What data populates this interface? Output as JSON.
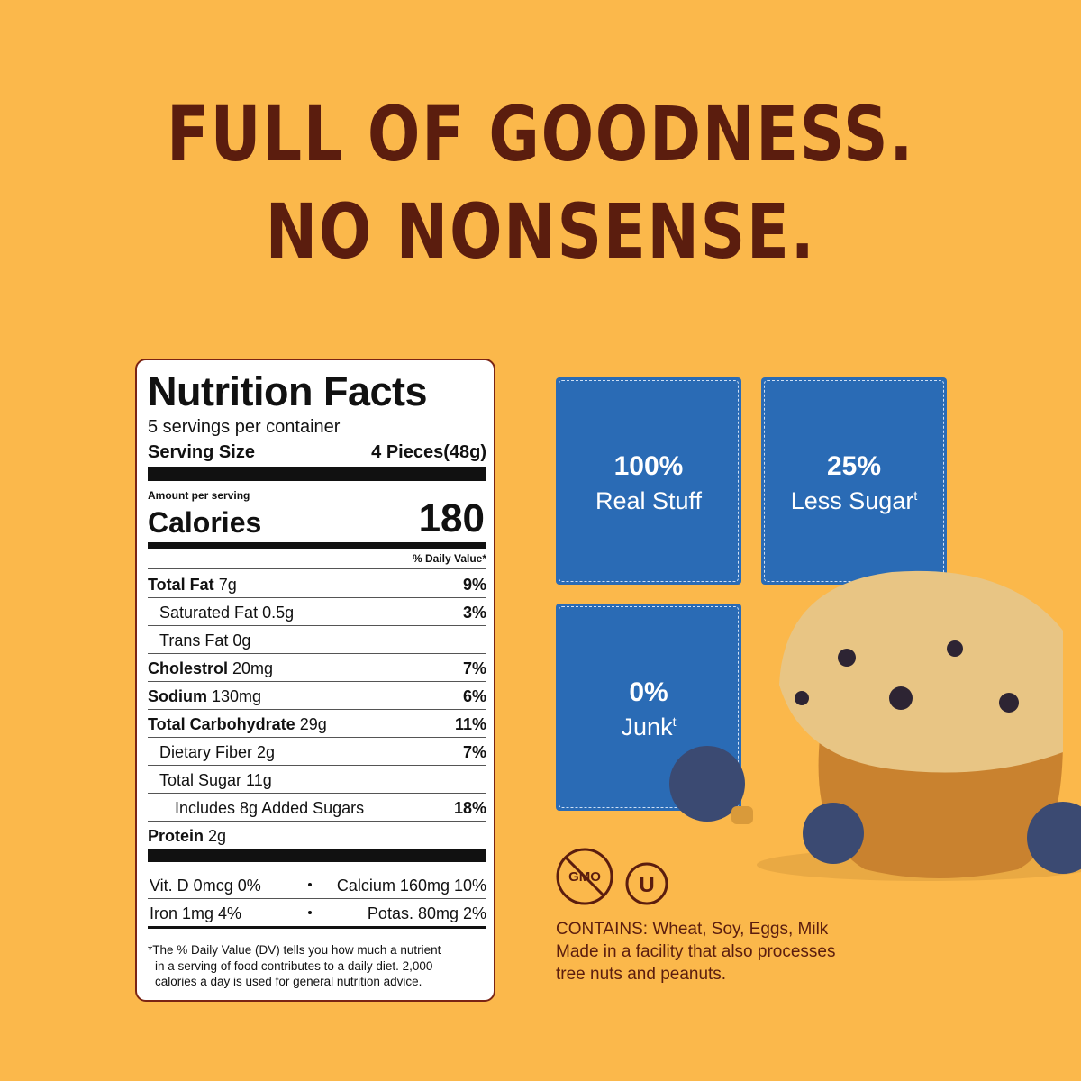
{
  "header": {
    "line1": "FULL OF GOODNESS.",
    "line2": "NO NONSENSE."
  },
  "nutrition": {
    "title": "Nutrition Facts",
    "servings": "5 servings per container",
    "serving_size_label": "Serving Size",
    "serving_size": "4 Pieces(48g)",
    "amount_per_serving": "Amount per serving",
    "calories_label": "Calories",
    "calories": "180",
    "daily_value_header": "% Daily Value*",
    "rows": [
      {
        "name": "Total Fat",
        "amount": "7g",
        "dv": "9%"
      },
      {
        "name": "Saturated Fat 0.5g",
        "dv": "3%"
      },
      {
        "name": "Trans Fat 0g"
      },
      {
        "name": "Cholestrol",
        "amount": "20mg",
        "dv": "7%"
      },
      {
        "name": "Sodium",
        "amount": "130mg",
        "dv": "6%"
      },
      {
        "name": "Total Carbohydrate",
        "amount": "29g",
        "dv": "11%"
      },
      {
        "name": "Dietary Fiber 2g",
        "dv": "7%"
      },
      {
        "name": "Total Sugar 11g"
      },
      {
        "name": "Includes 8g Added Sugars",
        "dv": "18%"
      },
      {
        "name": "Protein",
        "amount": "2g"
      }
    ],
    "vitamins": [
      [
        "Vit. D 0mcg 0%",
        "Calcium 160mg 10%"
      ],
      [
        "Iron 1mg 4%",
        "Potas. 80mg 2%"
      ]
    ],
    "footnote": [
      "*The % Daily Value (DV) tells you how much a nutrient",
      "in a serving of food contributes to a daily diet. 2,000",
      "calories a day is used for general nutrition advice."
    ]
  },
  "badges": [
    {
      "value": "100%",
      "label": "Real Stuff"
    },
    {
      "value": "25%",
      "label": "Less Sugar",
      "mark": "t"
    },
    {
      "value": "0%",
      "label": "Junk",
      "mark": "t"
    }
  ],
  "icons": {
    "gmo": "GMO",
    "kosher": "U"
  },
  "allergens": [
    "CONTAINS: Wheat, Soy, Eggs, Milk",
    "Made in a facility that also processes",
    "tree nuts and peanuts."
  ]
}
